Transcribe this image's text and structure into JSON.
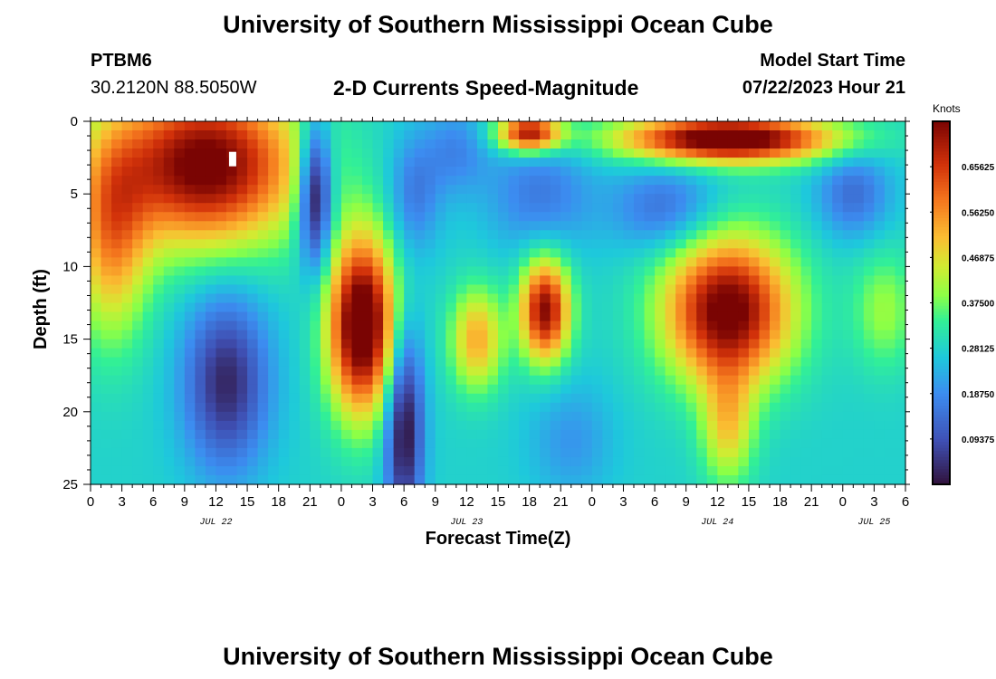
{
  "page": {
    "title": "University of Southern Mississippi Ocean Cube",
    "footer_title": "University of Southern Mississippi Ocean Cube",
    "station": "PTBM6",
    "coordinates": "30.2120N  88.5050W",
    "subtitle": "2-D Currents Speed-Magnitude",
    "model_start_label": "Model Start Time",
    "model_start_value": "07/22/2023 Hour 21"
  },
  "chart_data": {
    "type": "heatmap",
    "title": "2-D Currents Speed-Magnitude",
    "xlabel": "Forecast Time(Z)",
    "ylabel": "Depth (ft)",
    "x_tick_labels": [
      "0",
      "3",
      "6",
      "9",
      "12",
      "15",
      "18",
      "21",
      "0",
      "3",
      "6",
      "9",
      "12",
      "15",
      "18",
      "21",
      "0",
      "3",
      "6",
      "9",
      "12",
      "15",
      "18",
      "21",
      "0",
      "3",
      "6"
    ],
    "x_hours": [
      0,
      78
    ],
    "date_labels": [
      {
        "text": "JUL 22",
        "hour": 12
      },
      {
        "text": "JUL 23",
        "hour": 36
      },
      {
        "text": "JUL 24",
        "hour": 60
      },
      {
        "text": "JUL 25",
        "hour": 75
      }
    ],
    "y_ticks": [
      0,
      5,
      10,
      15,
      20,
      25
    ],
    "ylim": [
      0,
      25
    ],
    "colorbar": {
      "unit": "Knots",
      "tick_labels": [
        "0.65625",
        "0.56250",
        "0.46875",
        "0.37500",
        "0.28125",
        "0.18750",
        "0.09375"
      ],
      "tick_values": [
        0.65625,
        0.5625,
        0.46875,
        0.375,
        0.28125,
        0.1875,
        0.09375
      ],
      "range": [
        0,
        0.75
      ]
    },
    "features": [
      {
        "hour": 11,
        "depth": 3,
        "sh": 9,
        "sd": 5.5,
        "value": 0.5
      },
      {
        "hour": 2,
        "depth": 8,
        "sh": 3.5,
        "sd": 7,
        "value": 0.26
      },
      {
        "hour": 13,
        "depth": 18,
        "sh": 4,
        "sd": 6,
        "value": -0.25
      },
      {
        "hour": 21.5,
        "depth": 5,
        "sh": 1.6,
        "sd": 5,
        "value": -0.35
      },
      {
        "hour": 26,
        "depth": 14,
        "sh": 3.2,
        "sd": 6,
        "value": 0.56
      },
      {
        "hour": 30,
        "depth": 21,
        "sh": 1.8,
        "sd": 7,
        "value": -0.3
      },
      {
        "hour": 31,
        "depth": 5,
        "sh": 2.5,
        "sd": 4,
        "value": -0.12
      },
      {
        "hour": 35,
        "depth": 2,
        "sh": 3,
        "sd": 3,
        "value": -0.1
      },
      {
        "hour": 43,
        "depth": 5,
        "sh": 5,
        "sd": 4,
        "value": -0.12
      },
      {
        "hour": 42,
        "depth": 0.8,
        "sh": 3,
        "sd": 1.3,
        "value": 0.45
      },
      {
        "hour": 43.5,
        "depth": 13,
        "sh": 2.3,
        "sd": 3.5,
        "value": 0.46
      },
      {
        "hour": 37,
        "depth": 15,
        "sh": 2.5,
        "sd": 3.5,
        "value": 0.25
      },
      {
        "hour": 55,
        "depth": 6,
        "sh": 5,
        "sd": 3,
        "value": -0.14
      },
      {
        "hour": 61,
        "depth": 1.2,
        "sh": 10,
        "sd": 1.6,
        "value": 0.55
      },
      {
        "hour": 61,
        "depth": 13,
        "sh": 6,
        "sd": 5,
        "value": 0.5
      },
      {
        "hour": 61,
        "depth": 21,
        "sh": 2.5,
        "sd": 4,
        "value": 0.2
      },
      {
        "hour": 73,
        "depth": 5,
        "sh": 3.5,
        "sd": 3,
        "value": -0.14
      },
      {
        "hour": 46,
        "depth": 22,
        "sh": 4,
        "sd": 4,
        "value": -0.08
      },
      {
        "hour": 76,
        "depth": 13,
        "sh": 3,
        "sd": 4,
        "value": 0.12
      }
    ],
    "base_value": 0.28
  }
}
